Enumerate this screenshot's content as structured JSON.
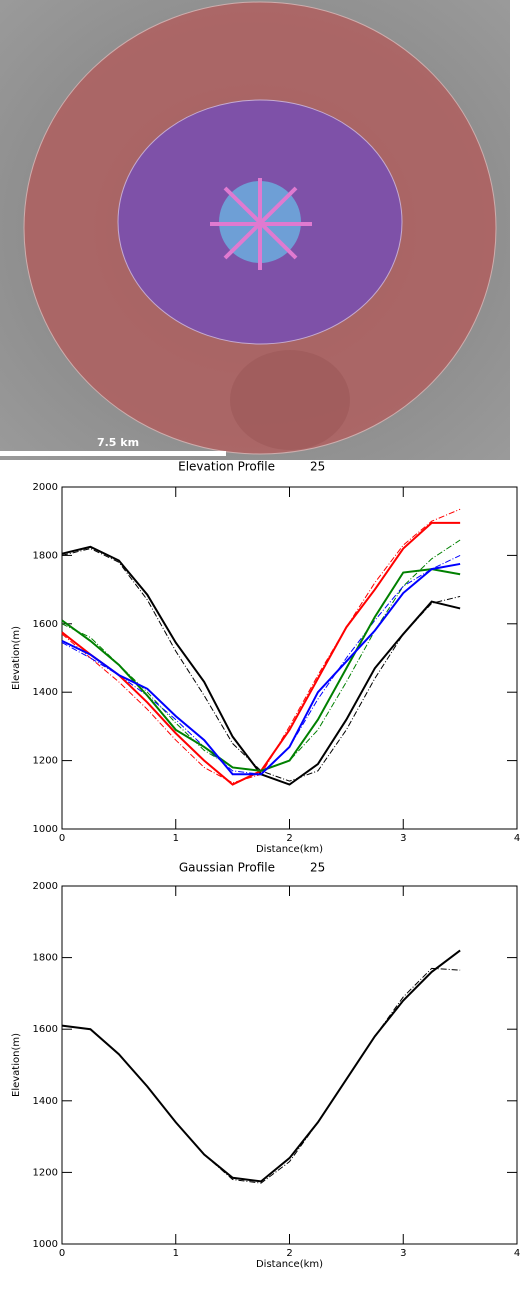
{
  "image": {
    "scale_label": "7.5 km"
  },
  "chart_data": [
    {
      "type": "line",
      "title": "Elevation Profile",
      "profile_id": "25",
      "xlabel": "Distance(km)",
      "ylabel": "Elevation(m)",
      "xlim": [
        0,
        4
      ],
      "ylim": [
        1000,
        2000
      ],
      "xticks": [
        0,
        1,
        2,
        3,
        4
      ],
      "yticks": [
        1000,
        1200,
        1400,
        1600,
        1800,
        2000
      ],
      "x": [
        0,
        0.25,
        0.5,
        0.75,
        1,
        1.25,
        1.5,
        1.75,
        2,
        2.25,
        2.5,
        2.75,
        3,
        3.25,
        3.5
      ],
      "series": [
        {
          "color": "#000000",
          "style": "dashdot",
          "values": [
            1800,
            1820,
            1780,
            1670,
            1520,
            1390,
            1250,
            1170,
            1140,
            1170,
            1290,
            1440,
            1570,
            1660,
            1680
          ]
        },
        {
          "color": "#ff0000",
          "style": "dashdot",
          "values": [
            1570,
            1500,
            1430,
            1350,
            1260,
            1180,
            1135,
            1160,
            1300,
            1450,
            1590,
            1720,
            1830,
            1900,
            1935
          ]
        },
        {
          "color": "#008000",
          "style": "dashdot",
          "values": [
            1600,
            1560,
            1480,
            1400,
            1310,
            1230,
            1180,
            1170,
            1200,
            1290,
            1430,
            1580,
            1710,
            1790,
            1845
          ]
        },
        {
          "color": "#0000ff",
          "style": "dashdot",
          "values": [
            1545,
            1500,
            1450,
            1390,
            1320,
            1240,
            1170,
            1160,
            1240,
            1380,
            1500,
            1610,
            1710,
            1760,
            1800
          ]
        },
        {
          "color": "#000000",
          "style": "solid",
          "values": [
            1805,
            1825,
            1785,
            1685,
            1545,
            1430,
            1270,
            1160,
            1130,
            1190,
            1320,
            1470,
            1570,
            1665,
            1645
          ]
        },
        {
          "color": "#ff0000",
          "style": "solid",
          "values": [
            1575,
            1510,
            1450,
            1370,
            1280,
            1200,
            1130,
            1170,
            1290,
            1440,
            1590,
            1700,
            1820,
            1895,
            1895
          ]
        },
        {
          "color": "#008000",
          "style": "solid",
          "values": [
            1610,
            1550,
            1480,
            1390,
            1290,
            1240,
            1180,
            1170,
            1200,
            1320,
            1470,
            1620,
            1750,
            1760,
            1745
          ]
        },
        {
          "color": "#0000ff",
          "style": "solid",
          "values": [
            1550,
            1510,
            1450,
            1410,
            1330,
            1260,
            1160,
            1160,
            1240,
            1400,
            1490,
            1580,
            1690,
            1760,
            1775
          ]
        }
      ]
    },
    {
      "type": "line",
      "title": "Gaussian Profile",
      "profile_id": "25",
      "xlabel": "Distance(km)",
      "ylabel": "Elevation(m)",
      "xlim": [
        0,
        4
      ],
      "ylim": [
        1000,
        2000
      ],
      "xticks": [
        0,
        1,
        2,
        3,
        4
      ],
      "yticks": [
        1000,
        1200,
        1400,
        1600,
        1800,
        2000
      ],
      "x": [
        0,
        0.25,
        0.5,
        0.75,
        1,
        1.25,
        1.5,
        1.75,
        2,
        2.25,
        2.5,
        2.75,
        3,
        3.25,
        3.5
      ],
      "series": [
        {
          "color": "#000000",
          "style": "dashdot",
          "values": [
            1610,
            1600,
            1530,
            1440,
            1340,
            1250,
            1180,
            1170,
            1230,
            1340,
            1460,
            1580,
            1690,
            1770,
            1765
          ]
        },
        {
          "color": "#000000",
          "style": "solid",
          "values": [
            1610,
            1600,
            1530,
            1440,
            1340,
            1250,
            1185,
            1175,
            1240,
            1340,
            1460,
            1580,
            1680,
            1760,
            1820
          ]
        }
      ]
    }
  ]
}
